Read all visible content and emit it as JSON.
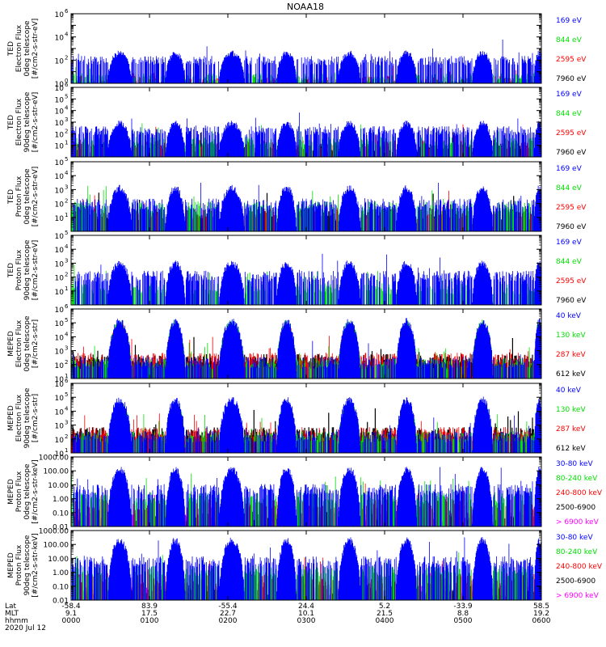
{
  "title": "NOAA18",
  "colors": {
    "black": "#000000",
    "red": "#ff0000",
    "green": "#00e000",
    "blue": "#0000ff",
    "magenta": "#ff00ff"
  },
  "chart_data": {
    "type": "line",
    "title": "NOAA18",
    "x_ticks": {
      "lat": [
        "-58.4",
        "83.9",
        "-55.4",
        "24.4",
        "5.2",
        "-33.9",
        "58.5"
      ],
      "mlt": [
        "9.1",
        "17.5",
        "22.7",
        "10.1",
        "21.5",
        "8.8",
        "19.2"
      ],
      "hhmm": [
        "0000",
        "0100",
        "0200",
        "0300",
        "0400",
        "0500",
        "0600"
      ],
      "row_labels": [
        "Lat",
        "MLT",
        "hhmm"
      ],
      "date": "2020 Jul 12"
    },
    "xlim_hours": [
      0,
      6
    ],
    "passes": [
      {
        "center": 0.62,
        "width": 0.3
      },
      {
        "center": 1.33,
        "width": 0.25
      },
      {
        "center": 2.05,
        "width": 0.32
      },
      {
        "center": 2.75,
        "width": 0.25
      },
      {
        "center": 3.55,
        "width": 0.28
      },
      {
        "center": 4.28,
        "width": 0.26
      },
      {
        "center": 5.25,
        "width": 0.26
      },
      {
        "center": 5.97,
        "width": 0.12
      }
    ],
    "panels": [
      {
        "ylabel": [
          "TED",
          "Electron Flux",
          "0deg telescope",
          "[#/cm2-s-str-eV]"
        ],
        "scale": "log",
        "ylim": [
          1,
          1000000.0
        ],
        "tick_mantissa": [
          "10",
          "10",
          "10",
          "10"
        ],
        "tick_exponents": [
          "0",
          "2",
          "4",
          "6"
        ],
        "series": [
          {
            "name": "7960 eV",
            "color": "black",
            "level": 1.2,
            "bg": 0
          },
          {
            "name": "2595 eV",
            "color": "red",
            "level": 1.6,
            "bg": 0.1
          },
          {
            "name": "844 eV",
            "color": "green",
            "level": 2.1,
            "bg": 0.3
          },
          {
            "name": "169 eV",
            "color": "blue",
            "level": 2.6,
            "bg": 1.8
          }
        ]
      },
      {
        "ylabel": [
          "TED",
          "Electron Flux",
          "90deg telescope",
          "[#/cm2-s-str-eV]"
        ],
        "scale": "log",
        "ylim": [
          1,
          1000000.0
        ],
        "tick_mantissa": [
          "10",
          "10",
          "10",
          "10",
          "10",
          "10"
        ],
        "tick_exponents": [
          "1",
          "2",
          "3",
          "4",
          "5",
          "6"
        ],
        "series": [
          {
            "name": "7960 eV",
            "color": "black",
            "level": 1.3,
            "bg": 0.6
          },
          {
            "name": "2595 eV",
            "color": "red",
            "level": 1.8,
            "bg": 0.9
          },
          {
            "name": "844 eV",
            "color": "green",
            "level": 2.2,
            "bg": 1.2
          },
          {
            "name": "169 eV",
            "color": "blue",
            "level": 2.9,
            "bg": 2.1
          }
        ]
      },
      {
        "ylabel": [
          "TED",
          "Proton Flux",
          "0deg telescope",
          "[#/cm2-s-str-eV]"
        ],
        "scale": "log",
        "ylim": [
          1,
          100000.0
        ],
        "tick_mantissa": [
          "10",
          "10",
          "10",
          "10",
          "10"
        ],
        "tick_exponents": [
          "1",
          "2",
          "3",
          "4",
          "5"
        ],
        "series": [
          {
            "name": "7960 eV",
            "color": "black",
            "level": 1.3,
            "bg": 1.0
          },
          {
            "name": "2595 eV",
            "color": "red",
            "level": 1.8,
            "bg": 1.1
          },
          {
            "name": "844 eV",
            "color": "green",
            "level": 2.3,
            "bg": 1.6
          },
          {
            "name": "169 eV",
            "color": "blue",
            "level": 3.1,
            "bg": 1.8
          }
        ]
      },
      {
        "ylabel": [
          "TED",
          "Proton Flux",
          "90deg telescope",
          "[#/cm2-s-str-eV]"
        ],
        "scale": "log",
        "ylim": [
          1,
          100000.0
        ],
        "tick_mantissa": [
          "10",
          "10",
          "10",
          "10",
          "10"
        ],
        "tick_exponents": [
          "1",
          "2",
          "3",
          "4",
          "5"
        ],
        "series": [
          {
            "name": "7960 eV",
            "color": "black",
            "level": 0.3,
            "bg": 0
          },
          {
            "name": "2595 eV",
            "color": "red",
            "level": 0.4,
            "bg": 0
          },
          {
            "name": "844 eV",
            "color": "green",
            "level": 2.3,
            "bg": 1.0
          },
          {
            "name": "169 eV",
            "color": "blue",
            "level": 3.0,
            "bg": 1.9
          }
        ]
      },
      {
        "ylabel": [
          "MEPED",
          "Electron Flux",
          "0deg telescope",
          "[#/cm2-s-str]"
        ],
        "scale": "log",
        "ylim": [
          10,
          1000000.0
        ],
        "tick_mantissa": [
          "10",
          "10",
          "10",
          "10",
          "10",
          "10"
        ],
        "tick_exponents": [
          "1",
          "2",
          "3",
          "4",
          "5",
          "6"
        ],
        "series": [
          {
            "name": "612 keV",
            "color": "black",
            "level": 4.6,
            "bg": 2.2
          },
          {
            "name": "287 keV",
            "color": "red",
            "level": 4.8,
            "bg": 2.3
          },
          {
            "name": "130 keV",
            "color": "green",
            "level": 5.0,
            "bg": 1.9
          },
          {
            "name": "40 keV",
            "color": "blue",
            "level": 5.1,
            "bg": 2.0
          }
        ]
      },
      {
        "ylabel": [
          "MEPED",
          "Electron Flux",
          "90deg telescope",
          "[#/cm2-s-str]"
        ],
        "scale": "log",
        "ylim": [
          10,
          1000000.0
        ],
        "tick_mantissa": [
          "10",
          "10",
          "10",
          "10",
          "10",
          "10"
        ],
        "tick_exponents": [
          "1",
          "2",
          "3",
          "4",
          "5",
          "6"
        ],
        "series": [
          {
            "name": "612 keV",
            "color": "black",
            "level": 3.2,
            "bg": 2.3
          },
          {
            "name": "287 keV",
            "color": "red",
            "level": 4.0,
            "bg": 2.3
          },
          {
            "name": "130 keV",
            "color": "green",
            "level": 4.5,
            "bg": 2.0
          },
          {
            "name": "40 keV",
            "color": "blue",
            "level": 4.8,
            "bg": 2.0
          }
        ]
      },
      {
        "ylabel": [
          "MEPED",
          "Proton Flux",
          "0deg telescope",
          "[#/cm2-s-str-keV]"
        ],
        "scale": "log",
        "ylim": [
          0.01,
          1000
        ],
        "tick_labels": [
          "0.01",
          "0.10",
          "1.00",
          "10.00",
          "100.00",
          "1000.00"
        ],
        "series": [
          {
            "name": "> 6900 keV",
            "color": "magenta",
            "level": -0.2,
            "bg": -1.5
          },
          {
            "name": "2500-6900",
            "color": "black",
            "level": 0.4,
            "bg": -1.4
          },
          {
            "name": "240-800 keV",
            "color": "red",
            "level": 1.0,
            "bg": -0.6
          },
          {
            "name": "80-240 keV",
            "color": "green",
            "level": 1.6,
            "bg": -0.1
          },
          {
            "name": "30-80 keV",
            "color": "blue",
            "level": 2.1,
            "bg": 0.5
          }
        ]
      },
      {
        "ylabel": [
          "MEPED",
          "Proton Flux",
          "90deg telescope",
          "[#/cm2-s-str-keV]"
        ],
        "scale": "log",
        "ylim": [
          0.01,
          1000
        ],
        "tick_labels": [
          "0.01",
          "0.10",
          "1.00",
          "10.00",
          "100.00",
          "1000.00"
        ],
        "series": [
          {
            "name": "> 6900 keV",
            "color": "magenta",
            "level": -0.3,
            "bg": -1.5
          },
          {
            "name": "2500-6900",
            "color": "black",
            "level": 0.5,
            "bg": -1.4
          },
          {
            "name": "240-800 keV",
            "color": "red",
            "level": 1.2,
            "bg": -0.6
          },
          {
            "name": "80-240 keV",
            "color": "green",
            "level": 1.7,
            "bg": -0.1
          },
          {
            "name": "30-80 keV",
            "color": "blue",
            "level": 2.3,
            "bg": 0.6
          }
        ]
      }
    ]
  }
}
